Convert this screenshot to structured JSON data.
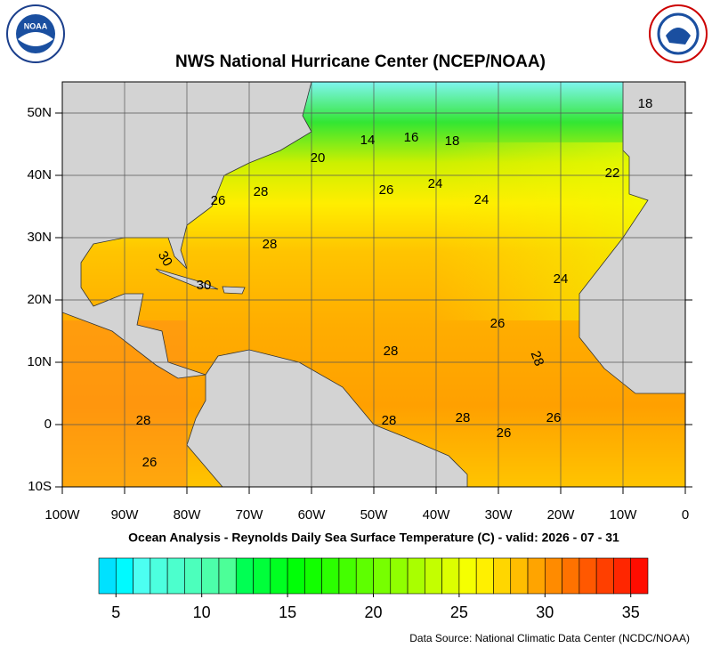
{
  "header": {
    "title": "NWS National Hurricane Center (NCEP/NOAA)",
    "logo_text": "NOAA"
  },
  "map": {
    "lonlim": [
      -100,
      0
    ],
    "latlim": [
      -10,
      55
    ],
    "lon_ticks": [
      {
        "value": -100,
        "label": "100W"
      },
      {
        "value": -90,
        "label": "90W"
      },
      {
        "value": -80,
        "label": "80W"
      },
      {
        "value": -70,
        "label": "70W"
      },
      {
        "value": -60,
        "label": "60W"
      },
      {
        "value": -50,
        "label": "50W"
      },
      {
        "value": -40,
        "label": "40W"
      },
      {
        "value": -30,
        "label": "30W"
      },
      {
        "value": -20,
        "label": "20W"
      },
      {
        "value": -10,
        "label": "10W"
      },
      0
    ],
    "lat_ticks": [
      {
        "value": -10,
        "label": "10S"
      },
      0,
      {
        "value": 10,
        "label": "10N"
      },
      {
        "value": 20,
        "label": "20N"
      },
      {
        "value": 30,
        "label": "30N"
      },
      {
        "value": 40,
        "label": "40N"
      },
      {
        "value": 50,
        "label": "50N"
      }
    ],
    "contour_labels": [
      18,
      14,
      16,
      18,
      20,
      22,
      26,
      24,
      24,
      28,
      26,
      28,
      30,
      30,
      24,
      26,
      28,
      28,
      28,
      28,
      28,
      26,
      26,
      26
    ],
    "subtitle": "Ocean Analysis - Reynolds Daily Sea Surface Temperature (C) - valid: 2026 - 07 - 31"
  },
  "colorbar": {
    "range": [
      4,
      36
    ],
    "ticks": [
      5,
      10,
      15,
      20,
      25,
      30,
      35
    ]
  },
  "footer": {
    "source": "Data Source: National Climatic Data Center (NCDC/NOAA)"
  }
}
